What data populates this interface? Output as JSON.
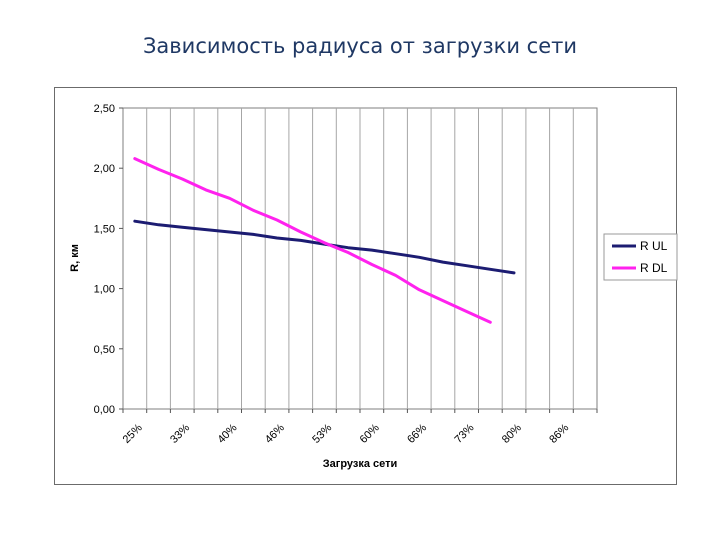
{
  "slide": {
    "title": "Зависимость радиуса от загрузки сети"
  },
  "chart_data": {
    "type": "line",
    "xlabel": "Загрузка сети",
    "ylabel": "R, км",
    "ylim": [
      0,
      2.5
    ],
    "y_ticks": [
      "0,00",
      "0,50",
      "1,00",
      "1,50",
      "2,00",
      "2,50"
    ],
    "x_tick_labels": [
      "25%",
      "33%",
      "40%",
      "46%",
      "53%",
      "60%",
      "66%",
      "73%",
      "80%",
      "86%"
    ],
    "category_count": 20,
    "grid": {
      "vertical": true,
      "horizontal": false
    },
    "legend_position": "right",
    "series": [
      {
        "name": "R UL",
        "color": "#1c1c72",
        "values": [
          1.56,
          1.53,
          1.51,
          1.49,
          1.47,
          1.45,
          1.42,
          1.4,
          1.37,
          1.34,
          1.32,
          1.29,
          1.26,
          1.22,
          1.19,
          1.16,
          1.13
        ]
      },
      {
        "name": "R DL",
        "color": "#ff22ee",
        "values": [
          2.08,
          1.99,
          1.91,
          1.82,
          1.75,
          1.65,
          1.57,
          1.47,
          1.38,
          1.3,
          1.2,
          1.11,
          0.99,
          0.9,
          0.81,
          0.72
        ]
      }
    ]
  }
}
